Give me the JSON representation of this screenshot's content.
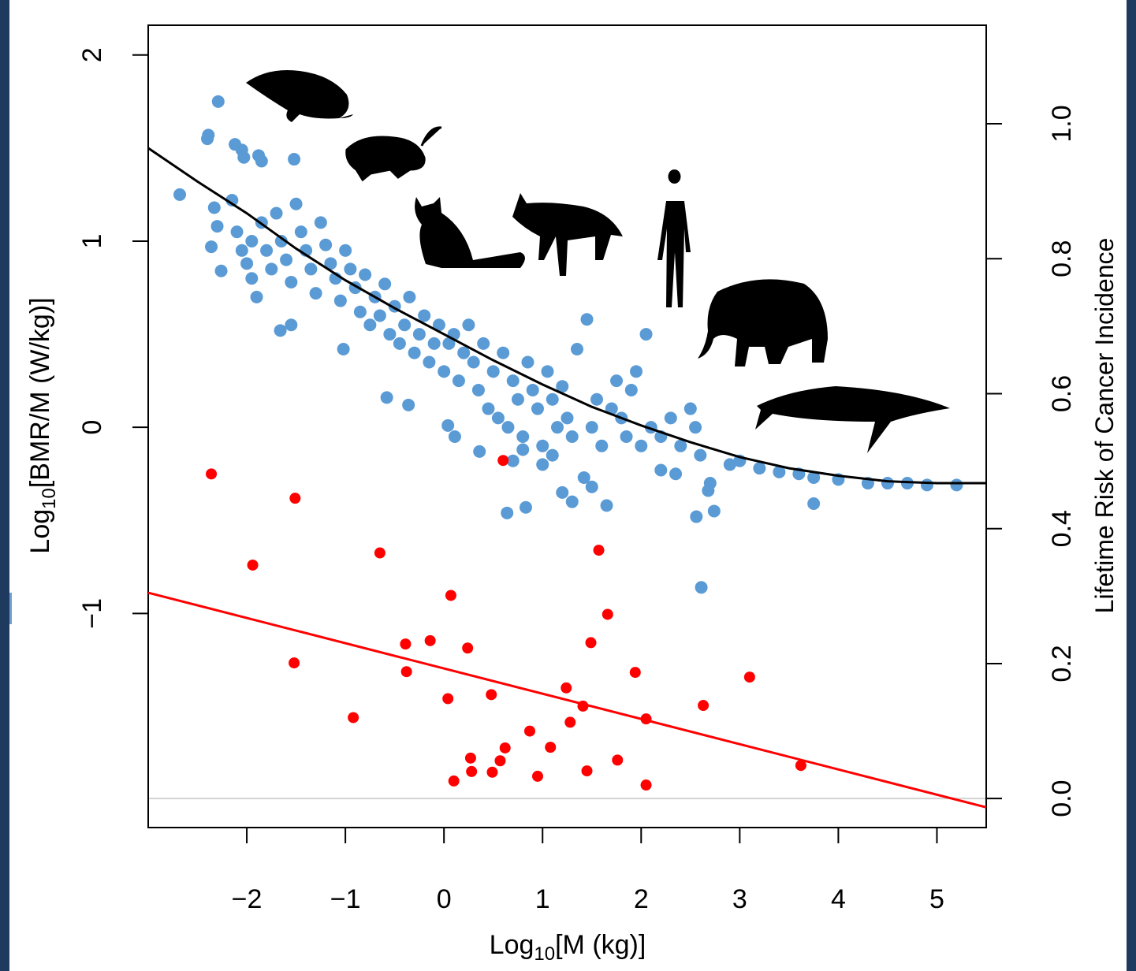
{
  "chart_data": {
    "type": "scatter",
    "x_label": [
      "Log",
      "10",
      "[M (kg)]"
    ],
    "y_label": [
      "Log",
      "10",
      "[BMR/M (W/kg)]"
    ],
    "y2_label": "Lifetime Risk of Cancer Incidence",
    "xlim": [
      -3,
      5.5
    ],
    "ylim": [
      -2.15,
      2.16
    ],
    "y2lim": [
      -0.043,
      1.146
    ],
    "xticks": [
      {
        "value": -2,
        "label": "−2"
      },
      {
        "value": -1,
        "label": "−1"
      },
      0,
      1,
      2,
      3,
      4,
      5
    ],
    "yticks": [
      {
        "value": -1,
        "label": "−1"
      },
      0,
      1,
      2
    ],
    "y2ticks": [
      {
        "value": 0,
        "label": "0.0"
      },
      0.2,
      0.4,
      0.6,
      0.8,
      {
        "value": 1,
        "label": "1.0"
      }
    ],
    "reference_line_y2": 0,
    "reference_line_color": "#d3d3d3",
    "series": [
      {
        "mode": "points",
        "color": "#5b9bd5",
        "x": [
          -2.29,
          -2.39,
          -2.4,
          -2.68,
          -1.52,
          -2.12,
          -2.05,
          -1.88,
          -1.85,
          -2.03,
          -2.33,
          -2.3,
          -2.36,
          -2.26,
          -2.15,
          -2.1,
          -2.05,
          -2.0,
          -1.95,
          -1.9,
          -1.95,
          -1.85,
          -1.8,
          -1.75,
          -1.7,
          -1.65,
          -1.6,
          -1.55,
          -1.5,
          -1.45,
          -1.4,
          -1.35,
          -1.3,
          -1.25,
          -1.2,
          -1.15,
          -1.1,
          -1.05,
          -1.0,
          -0.95,
          -0.9,
          -0.85,
          -0.8,
          -0.75,
          -0.7,
          -0.65,
          -0.6,
          -0.55,
          -0.5,
          -0.45,
          -0.4,
          -0.35,
          -0.3,
          -0.25,
          -0.2,
          -0.15,
          -0.1,
          -0.05,
          0.0,
          0.05,
          0.1,
          0.15,
          0.2,
          0.25,
          0.3,
          0.35,
          0.4,
          0.45,
          0.5,
          0.55,
          0.6,
          0.65,
          0.7,
          0.75,
          0.8,
          0.85,
          0.9,
          0.95,
          1.0,
          1.05,
          1.1,
          1.15,
          1.2,
          1.25,
          1.3,
          1.35,
          1.45,
          1.5,
          1.55,
          1.6,
          1.7,
          1.75,
          1.8,
          1.85,
          1.9,
          1.95,
          2.0,
          2.05,
          2.1,
          2.2,
          2.3,
          2.4,
          2.5,
          2.55,
          2.6,
          2.7,
          2.9,
          3.0,
          3.2,
          3.4,
          3.6,
          3.75,
          4.0,
          4.3,
          4.5,
          4.7,
          4.9,
          5.2,
          -1.66,
          -1.55,
          -1.02,
          -0.58,
          -0.36,
          0.04,
          0.11,
          0.36,
          0.8,
          1.0,
          1.2,
          1.3,
          1.42,
          1.5,
          1.65,
          0.64,
          0.83,
          2.61,
          3.75,
          2.56,
          2.74,
          2.68,
          0.7,
          1.1,
          2.2,
          2.35
        ],
        "values": [
          1.75,
          1.57,
          1.55,
          1.25,
          1.44,
          1.52,
          1.49,
          1.46,
          1.43,
          1.45,
          1.18,
          1.08,
          0.97,
          0.84,
          1.22,
          1.05,
          0.95,
          0.88,
          0.8,
          0.7,
          1.0,
          1.1,
          0.95,
          0.85,
          1.15,
          1.0,
          0.9,
          0.78,
          1.2,
          1.05,
          0.95,
          0.85,
          0.72,
          1.1,
          0.98,
          0.88,
          0.8,
          0.68,
          0.95,
          0.85,
          0.75,
          0.62,
          0.82,
          0.55,
          0.7,
          0.6,
          0.77,
          0.5,
          0.65,
          0.45,
          0.55,
          0.7,
          0.4,
          0.5,
          0.6,
          0.35,
          0.45,
          0.55,
          0.3,
          0.45,
          0.5,
          0.25,
          0.4,
          0.55,
          0.35,
          0.2,
          0.45,
          0.1,
          0.3,
          0.05,
          0.4,
          0.0,
          0.25,
          0.15,
          -0.05,
          0.35,
          0.2,
          0.1,
          -0.1,
          0.3,
          0.15,
          0.0,
          0.22,
          0.05,
          -0.05,
          0.42,
          0.58,
          0.0,
          0.15,
          -0.1,
          0.1,
          0.25,
          0.05,
          -0.05,
          0.2,
          0.3,
          -0.1,
          0.5,
          0.0,
          -0.05,
          0.05,
          -0.1,
          0.1,
          0.0,
          -0.15,
          -0.3,
          -0.2,
          -0.18,
          -0.22,
          -0.24,
          -0.25,
          -0.27,
          -0.28,
          -0.3,
          -0.3,
          -0.3,
          -0.31,
          -0.31,
          0.52,
          0.55,
          0.42,
          0.16,
          0.12,
          0.01,
          -0.05,
          -0.13,
          -0.12,
          -0.2,
          -0.35,
          -0.4,
          -0.27,
          -0.32,
          -0.42,
          -0.46,
          -0.43,
          -0.86,
          -0.41,
          -0.48,
          -0.45,
          -0.34,
          -0.18,
          -0.15,
          -0.23,
          -0.25
        ]
      },
      {
        "mode": "points",
        "color": "#ff0000",
        "axis": "y2",
        "x": [
          -2.36,
          -1.51,
          -1.94,
          -0.65,
          0.6,
          1.57,
          0.07,
          1.66,
          -1.52,
          -0.39,
          -0.14,
          -0.38,
          0.24,
          1.49,
          1.94,
          3.1,
          0.04,
          0.48,
          1.24,
          1.41,
          2.63,
          -0.92,
          1.28,
          2.05,
          0.87,
          1.08,
          0.62,
          0.57,
          0.27,
          0.28,
          0.49,
          0.1,
          0.95,
          1.45,
          1.76,
          2.05,
          3.62
        ],
        "values": [
          0.481,
          0.445,
          0.346,
          0.364,
          0.501,
          0.368,
          0.301,
          0.273,
          0.201,
          0.229,
          0.234,
          0.188,
          0.223,
          0.231,
          0.187,
          0.18,
          0.148,
          0.154,
          0.164,
          0.137,
          0.138,
          0.12,
          0.113,
          0.118,
          0.1,
          0.076,
          0.075,
          0.056,
          0.06,
          0.04,
          0.039,
          0.026,
          0.033,
          0.041,
          0.057,
          0.02,
          0.049
        ]
      },
      {
        "mode": "line",
        "color": "#000000",
        "x": [
          -3,
          -2.5,
          -2,
          -1.5,
          -1,
          -0.5,
          0,
          0.5,
          1,
          1.5,
          2,
          2.5,
          3,
          3.5,
          4,
          4.5,
          5,
          5.5
        ],
        "values": [
          1.5,
          1.32,
          1.15,
          0.96,
          0.79,
          0.64,
          0.5,
          0.36,
          0.23,
          0.11,
          0.01,
          -0.08,
          -0.16,
          -0.22,
          -0.26,
          -0.29,
          -0.3,
          -0.3
        ]
      },
      {
        "mode": "line",
        "color": "#ff0000",
        "axis": "y2",
        "x": [
          -3,
          5.5
        ],
        "values": [
          0.305,
          -0.013
        ]
      }
    ]
  }
}
